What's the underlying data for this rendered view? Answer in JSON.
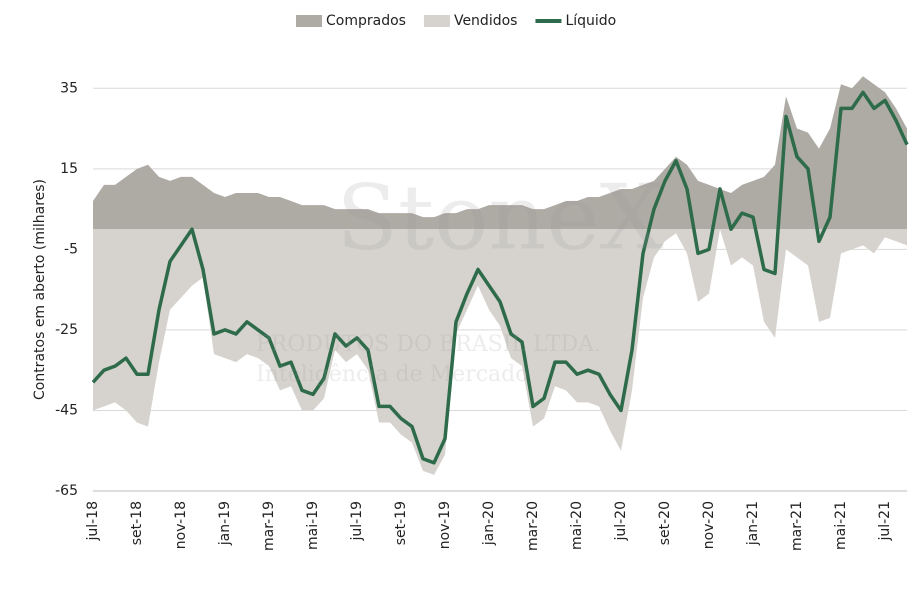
{
  "chart_data": {
    "type": "area-line",
    "y_label": "Contratos em aberto (milhares)",
    "watermark": [
      "StoneX",
      "PRODUTOS DO BRASIL LTDA.",
      "Inteligência de Mercado"
    ],
    "categories": [
      "jul-18",
      null,
      null,
      null,
      "set-18",
      null,
      null,
      null,
      "nov-18",
      null,
      null,
      null,
      "jan-19",
      null,
      null,
      null,
      "mar-19",
      null,
      null,
      null,
      "mai-19",
      null,
      null,
      null,
      "jul-19",
      null,
      null,
      null,
      "set-19",
      null,
      null,
      null,
      "nov-19",
      null,
      null,
      null,
      "jan-20",
      null,
      null,
      null,
      "mar-20",
      null,
      null,
      null,
      "mai-20",
      null,
      null,
      null,
      "jul-20",
      null,
      null,
      null,
      "set-20",
      null,
      null,
      null,
      "nov-20",
      null,
      null,
      null,
      "jan-21",
      null,
      null,
      null,
      "mar-21",
      null,
      null,
      null,
      "mai-21",
      null,
      null,
      null,
      "jul-21",
      null,
      null
    ],
    "series": [
      {
        "name": "Comprados",
        "color": "#aeaba5",
        "kind": "area",
        "values": [
          7,
          11,
          11,
          13,
          15,
          16,
          13,
          12,
          13,
          13,
          11,
          9,
          8,
          9,
          9,
          9,
          8,
          8,
          7,
          6,
          6,
          6,
          5,
          5,
          5,
          5,
          4,
          4,
          4,
          4,
          3,
          3,
          4,
          4,
          5,
          5,
          6,
          6,
          6,
          6,
          5,
          5,
          6,
          7,
          7,
          8,
          8,
          9,
          10,
          10,
          11,
          12,
          15,
          18,
          16,
          12,
          11,
          10,
          9,
          11,
          12,
          13,
          16,
          33,
          25,
          24,
          20,
          25,
          36,
          35,
          38,
          36,
          34,
          30,
          25
        ]
      },
      {
        "name": "Vendidos",
        "color": "#d6d3ce",
        "kind": "area",
        "values": [
          -45,
          -44,
          -43,
          -45,
          -48,
          -49,
          -33,
          -20,
          -17,
          -14,
          -12,
          -31,
          -32,
          -33,
          -31,
          -32,
          -34,
          -40,
          -39,
          -45,
          -45,
          -42,
          -30,
          -33,
          -31,
          -35,
          -48,
          -48,
          -51,
          -53,
          -60,
          -61,
          -56,
          -26,
          -20,
          -14,
          -20,
          -24,
          -32,
          -34,
          -49,
          -47,
          -39,
          -40,
          -43,
          -43,
          -44,
          -50,
          -55,
          -40,
          -17,
          -7,
          -3,
          -1,
          -6,
          -18,
          -16,
          0,
          -9,
          -7,
          -9,
          -23,
          -27,
          -5,
          -7,
          -9,
          -23,
          -22,
          -6,
          -5,
          -4,
          -6,
          -2,
          -3,
          -4
        ]
      },
      {
        "name": "Líquido",
        "color": "#2e6b4a",
        "kind": "line",
        "values": [
          -38,
          -35,
          -34,
          -32,
          -36,
          -36,
          -20,
          -8,
          -4,
          0,
          -10,
          -26,
          -25,
          -26,
          -23,
          -25,
          -27,
          -34,
          -33,
          -40,
          -41,
          -37,
          -26,
          -29,
          -27,
          -30,
          -44,
          -44,
          -47,
          -49,
          -57,
          -58,
          -52,
          -23,
          -16,
          -10,
          -14,
          -18,
          -26,
          -28,
          -44,
          -42,
          -33,
          -33,
          -36,
          -35,
          -36,
          -41,
          -45,
          -30,
          -6,
          5,
          12,
          17,
          10,
          -6,
          -5,
          10,
          0,
          4,
          3,
          -10,
          -11,
          28,
          18,
          15,
          -3,
          3,
          30,
          30,
          34,
          30,
          32,
          27,
          21
        ]
      }
    ],
    "ylim": [
      -65,
      45
    ],
    "yticks": [
      -65,
      -45,
      -25,
      -5,
      15,
      35
    ],
    "grid": true,
    "legend": "top"
  }
}
